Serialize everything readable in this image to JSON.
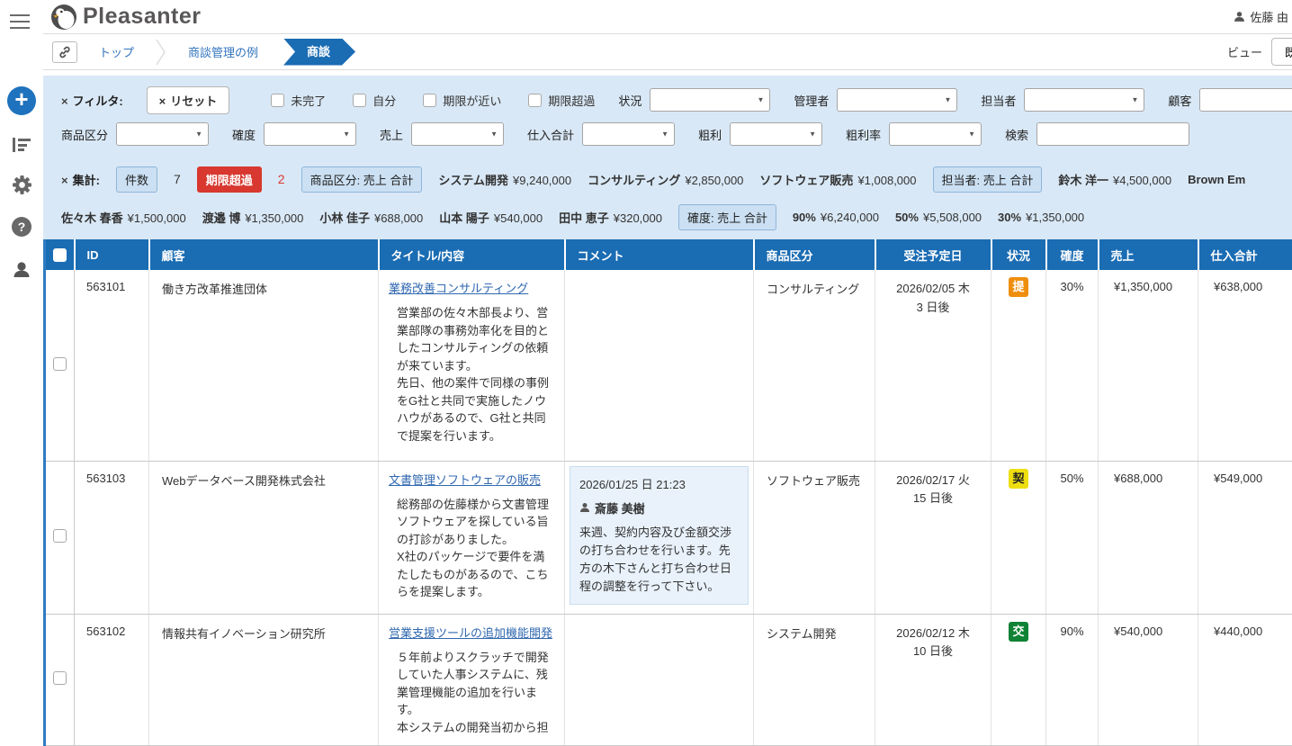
{
  "header": {
    "logo": "Pleasanter",
    "user": "佐藤 由"
  },
  "breadcrumb": {
    "items": [
      "トップ",
      "商談管理の例"
    ],
    "current": "商談",
    "view_label": "ビュー",
    "view_button": "既"
  },
  "filters": {
    "label": "フィルタ:",
    "reset": "リセット",
    "checkboxes": [
      "未完了",
      "自分",
      "期限が近い",
      "期限超過"
    ],
    "dropdowns_row1": [
      "状況",
      "管理者",
      "担当者",
      "顧客"
    ],
    "dropdowns_row2": [
      "商品区分",
      "確度",
      "売上",
      "仕入合計",
      "粗利",
      "粗利率"
    ],
    "search_label": "検索",
    "search_value": ""
  },
  "aggregations": {
    "label": "集計:",
    "row1": [
      {
        "type": "button",
        "style": "blue",
        "text": "件数"
      },
      {
        "type": "value",
        "text": "7"
      },
      {
        "type": "button",
        "style": "red",
        "text": "期限超過"
      },
      {
        "type": "value",
        "style": "red",
        "text": "2"
      },
      {
        "type": "button",
        "style": "blue",
        "text": "商品区分: 売上 合計"
      },
      {
        "type": "stat",
        "name": "システム開発",
        "value": "¥9,240,000"
      },
      {
        "type": "stat",
        "name": "コンサルティング",
        "value": "¥2,850,000"
      },
      {
        "type": "stat",
        "name": "ソフトウェア販売",
        "value": "¥1,008,000"
      },
      {
        "type": "button",
        "style": "blue",
        "text": "担当者: 売上 合計"
      },
      {
        "type": "stat",
        "name": "鈴木 洋一",
        "value": "¥4,500,000"
      },
      {
        "type": "stat",
        "name": "Brown Em",
        "value": ""
      }
    ],
    "row2": [
      {
        "type": "stat",
        "name": "佐々木 春香",
        "value": "¥1,500,000"
      },
      {
        "type": "stat",
        "name": "渡邉 博",
        "value": "¥1,350,000"
      },
      {
        "type": "stat",
        "name": "小林 佳子",
        "value": "¥688,000"
      },
      {
        "type": "stat",
        "name": "山本 陽子",
        "value": "¥540,000"
      },
      {
        "type": "stat",
        "name": "田中 恵子",
        "value": "¥320,000"
      },
      {
        "type": "button",
        "style": "blue",
        "text": "確度: 売上 合計"
      },
      {
        "type": "stat",
        "name": "90%",
        "value": "¥6,240,000"
      },
      {
        "type": "stat",
        "name": "50%",
        "value": "¥5,508,000"
      },
      {
        "type": "stat",
        "name": "30%",
        "value": "¥1,350,000"
      }
    ]
  },
  "table": {
    "columns": [
      {
        "key": "id",
        "label": "ID"
      },
      {
        "key": "customer",
        "label": "顧客"
      },
      {
        "key": "title",
        "label": "タイトル/内容"
      },
      {
        "key": "comment",
        "label": "コメント"
      },
      {
        "key": "category",
        "label": "商品区分"
      },
      {
        "key": "orderdate",
        "label": "受注予定日"
      },
      {
        "key": "status",
        "label": "状況"
      },
      {
        "key": "probability",
        "label": "確度"
      },
      {
        "key": "sales",
        "label": "売上"
      },
      {
        "key": "purchase",
        "label": "仕入合計"
      }
    ],
    "rows": [
      {
        "id": "563101",
        "customer": "働き方改革推進団体",
        "title": "業務改善コンサルティング",
        "body": "営業部の佐々木部長より、営業部隊の事務効率化を目的としたコンサルティングの依頼が来ています。\n先日、他の案件で同様の事例をG社と共同で実施したノウハウがあるので、G社と共同で提案を行います。",
        "comment": null,
        "category": "コンサルティング",
        "order_date": "2026/02/05 木",
        "order_date_rel": "3 日後",
        "status": {
          "text": "提",
          "style": "orange"
        },
        "probability": "30%",
        "sales": "¥1,350,000",
        "purchase": "¥638,000"
      },
      {
        "id": "563103",
        "customer": "Webデータベース開発株式会社",
        "title": "文書管理ソフトウェアの販売",
        "body": "総務部の佐藤様から文書管理ソフトウェアを探している旨の打診がありました。\nX社のパッケージで要件を満たしたものがあるので、こちらを提案します。",
        "comment": {
          "date": "2026/01/25 日 21:23",
          "author": "斎藤 美樹",
          "text": "来週、契約内容及び金額交渉の打ち合わせを行います。先方の木下さんと打ち合わせ日程の調整を行って下さい。"
        },
        "category": "ソフトウェア販売",
        "order_date": "2026/02/17 火",
        "order_date_rel": "15 日後",
        "status": {
          "text": "契",
          "style": "yellow"
        },
        "probability": "50%",
        "sales": "¥688,000",
        "purchase": "¥549,000"
      },
      {
        "id": "563102",
        "customer": "情報共有イノベーション研究所",
        "title": "営業支援ツールの追加機能開発",
        "body": "５年前よりスクラッチで開発していた人事システムに、残業管理機能の追加を行います。\n本システムの開発当初から担",
        "comment": null,
        "category": "システム開発",
        "order_date": "2026/02/12 木",
        "order_date_rel": "10 日後",
        "status": {
          "text": "交",
          "style": "green"
        },
        "probability": "90%",
        "sales": "¥540,000",
        "purchase": "¥440,000"
      }
    ]
  },
  "colors": {
    "accent": "#1a6cb3",
    "filter_bg": "#d9e8f6",
    "alert_red": "#d8382f",
    "status": {
      "orange": {
        "bg": "#ef8e0e",
        "fg": "#ffffff"
      },
      "yellow": {
        "bg": "#eede10",
        "fg": "#222222"
      },
      "green": {
        "bg": "#0f8235",
        "fg": "#ffffff"
      }
    }
  }
}
